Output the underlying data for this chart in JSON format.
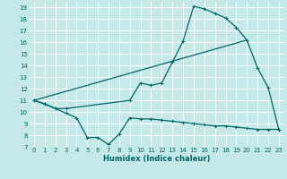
{
  "xlabel": "Humidex (Indice chaleur)",
  "bg_color": "#c5e8e8",
  "grid_color": "#ffffff",
  "line_color": "#006666",
  "xlim": [
    -0.5,
    23.5
  ],
  "ylim": [
    7,
    19.5
  ],
  "yticks": [
    7,
    8,
    9,
    10,
    11,
    12,
    13,
    14,
    15,
    16,
    17,
    18,
    19
  ],
  "xticks": [
    0,
    1,
    2,
    3,
    4,
    5,
    6,
    7,
    8,
    9,
    10,
    11,
    12,
    13,
    14,
    15,
    16,
    17,
    18,
    19,
    20,
    21,
    22,
    23
  ],
  "line1_x": [
    0,
    1,
    2,
    3,
    4,
    5,
    6,
    7,
    8,
    9,
    10,
    11,
    12,
    13,
    14,
    15,
    16,
    17,
    18,
    19,
    20,
    21,
    22,
    23
  ],
  "line1_y": [
    11.0,
    10.7,
    10.3,
    9.9,
    9.5,
    7.8,
    7.8,
    7.2,
    8.1,
    9.5,
    9.4,
    9.4,
    9.3,
    9.2,
    9.1,
    9.0,
    8.9,
    8.8,
    8.8,
    8.7,
    8.6,
    8.5,
    8.5,
    8.5
  ],
  "line2_x": [
    0,
    1,
    2,
    3,
    9,
    10,
    11,
    12,
    13,
    14,
    15,
    16,
    17,
    18,
    19,
    20,
    21,
    22,
    23
  ],
  "line2_y": [
    11.0,
    10.7,
    10.3,
    10.3,
    11.0,
    12.5,
    12.3,
    12.5,
    14.3,
    16.1,
    19.1,
    18.9,
    18.5,
    18.1,
    17.3,
    16.2,
    13.8,
    12.1,
    8.5
  ],
  "line3_x": [
    0,
    20
  ],
  "line3_y": [
    11.0,
    16.2
  ]
}
